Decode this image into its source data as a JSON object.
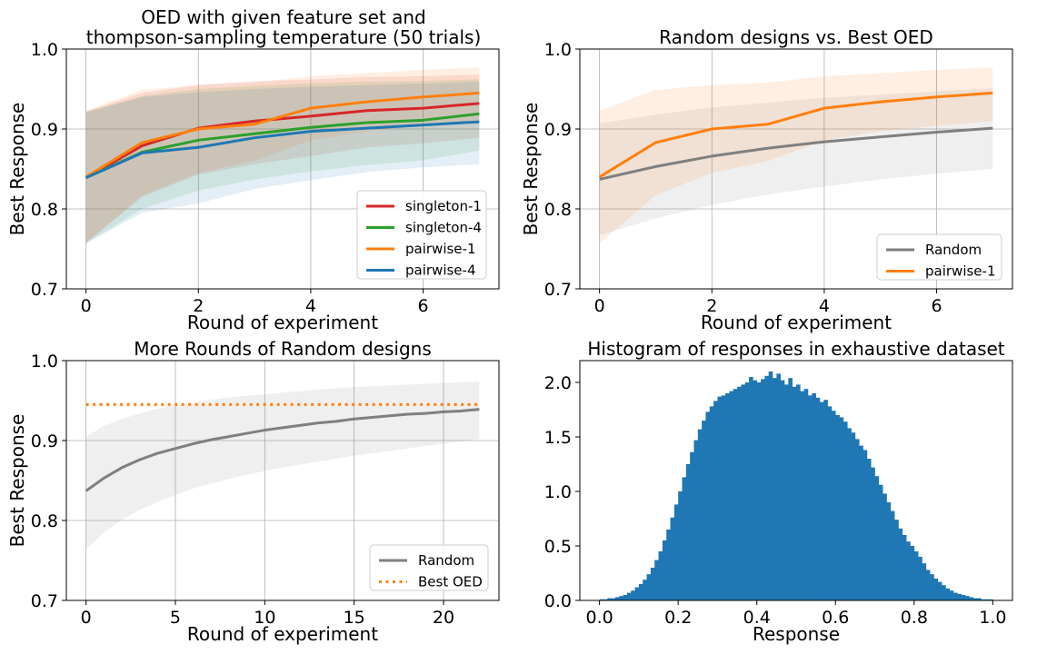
{
  "chart_data": [
    {
      "id": "p1",
      "type": "line",
      "title": [
        "OED with given feature set and",
        "thompson-sampling temperature (50 trials)"
      ],
      "xlabel": "Round of experiment",
      "ylabel": "Best Response",
      "xlim": [
        -0.35,
        7.35
      ],
      "ylim": [
        0.7,
        1.0
      ],
      "xticks": [
        0,
        2,
        4,
        6
      ],
      "yticks": [
        0.7,
        0.8,
        0.9,
        1.0
      ],
      "ytick_labels": [
        "0.7",
        "0.8",
        "0.9",
        "1.0"
      ],
      "grid": true,
      "legend_position": "lower-right",
      "x": [
        0,
        1,
        2,
        3,
        4,
        5,
        6,
        7
      ],
      "series": [
        {
          "name": "singleton-1",
          "color": "#d62728",
          "values": [
            0.839,
            0.879,
            0.901,
            0.91,
            0.916,
            0.923,
            0.926,
            0.932
          ],
          "lower": [
            0.758,
            0.815,
            0.843,
            0.856,
            0.866,
            0.877,
            0.882,
            0.889
          ],
          "upper": [
            0.922,
            0.945,
            0.955,
            0.96,
            0.962,
            0.965,
            0.966,
            0.968
          ]
        },
        {
          "name": "singleton-4",
          "color": "#2ca02c",
          "values": [
            0.839,
            0.871,
            0.886,
            0.894,
            0.902,
            0.908,
            0.911,
            0.919
          ],
          "lower": [
            0.757,
            0.8,
            0.823,
            0.837,
            0.847,
            0.855,
            0.861,
            0.873
          ],
          "upper": [
            0.921,
            0.941,
            0.95,
            0.954,
            0.957,
            0.959,
            0.96,
            0.962
          ]
        },
        {
          "name": "pairwise-1",
          "color": "#ff7f0e",
          "values": [
            0.84,
            0.883,
            0.9,
            0.906,
            0.926,
            0.934,
            0.94,
            0.945
          ],
          "lower": [
            0.757,
            0.817,
            0.845,
            0.86,
            0.886,
            0.897,
            0.904,
            0.91
          ],
          "upper": [
            0.923,
            0.949,
            0.955,
            0.958,
            0.966,
            0.97,
            0.974,
            0.977
          ]
        },
        {
          "name": "pairwise-4",
          "color": "#1f77b4",
          "values": [
            0.839,
            0.87,
            0.877,
            0.889,
            0.897,
            0.901,
            0.905,
            0.909
          ],
          "lower": [
            0.757,
            0.795,
            0.807,
            0.825,
            0.836,
            0.846,
            0.852,
            0.856
          ],
          "upper": [
            0.921,
            0.94,
            0.946,
            0.95,
            0.953,
            0.955,
            0.957,
            0.959
          ]
        }
      ]
    },
    {
      "id": "p2",
      "type": "line",
      "title": [
        "Random designs vs. Best OED"
      ],
      "xlabel": "Round of experiment",
      "ylabel": "Best Response",
      "xlim": [
        -0.35,
        7.35
      ],
      "ylim": [
        0.7,
        1.0
      ],
      "xticks": [
        0,
        2,
        4,
        6
      ],
      "yticks": [
        0.7,
        0.8,
        0.9,
        1.0
      ],
      "ytick_labels": [
        "0.7",
        "0.8",
        "0.9",
        "1.0"
      ],
      "grid": true,
      "legend_position": "lower-right",
      "x": [
        0,
        1,
        2,
        3,
        4,
        5,
        6,
        7
      ],
      "series": [
        {
          "name": "Random",
          "color": "#7f7f7f",
          "values": [
            0.837,
            0.853,
            0.866,
            0.876,
            0.884,
            0.89,
            0.896,
            0.901
          ],
          "lower": [
            0.767,
            0.788,
            0.805,
            0.818,
            0.828,
            0.837,
            0.844,
            0.85
          ],
          "upper": [
            0.907,
            0.918,
            0.927,
            0.933,
            0.939,
            0.943,
            0.947,
            0.951
          ]
        },
        {
          "name": "pairwise-1",
          "color": "#ff7f0e",
          "values": [
            0.84,
            0.883,
            0.9,
            0.906,
            0.926,
            0.934,
            0.94,
            0.945
          ],
          "lower": [
            0.757,
            0.817,
            0.845,
            0.86,
            0.886,
            0.897,
            0.904,
            0.91
          ],
          "upper": [
            0.923,
            0.949,
            0.955,
            0.958,
            0.966,
            0.97,
            0.974,
            0.977
          ]
        }
      ]
    },
    {
      "id": "p3",
      "type": "line",
      "title": [
        "More Rounds of Random designs"
      ],
      "xlabel": "Round of experiment",
      "ylabel": "Best Response",
      "xlim": [
        -1.1,
        23.1
      ],
      "ylim": [
        0.7,
        1.0
      ],
      "xticks": [
        0,
        5,
        10,
        15,
        20
      ],
      "yticks": [
        0.7,
        0.8,
        0.9,
        1.0
      ],
      "ytick_labels": [
        "0.7",
        "0.8",
        "0.9",
        "1.0"
      ],
      "grid": true,
      "legend_position": "lower-right",
      "x": [
        0,
        1,
        2,
        3,
        4,
        5,
        6,
        7,
        8,
        9,
        10,
        11,
        12,
        13,
        14,
        15,
        16,
        17,
        18,
        19,
        20,
        21,
        22
      ],
      "series": [
        {
          "name": "Random",
          "color": "#7f7f7f",
          "values": [
            0.837,
            0.853,
            0.866,
            0.876,
            0.884,
            0.89,
            0.896,
            0.901,
            0.905,
            0.909,
            0.913,
            0.916,
            0.919,
            0.922,
            0.924,
            0.927,
            0.929,
            0.931,
            0.933,
            0.934,
            0.936,
            0.937,
            0.939
          ],
          "lower": [
            0.764,
            0.785,
            0.801,
            0.813,
            0.823,
            0.832,
            0.84,
            0.846,
            0.852,
            0.857,
            0.862,
            0.866,
            0.87,
            0.874,
            0.877,
            0.881,
            0.884,
            0.887,
            0.89,
            0.893,
            0.896,
            0.899,
            0.902
          ],
          "upper": [
            0.905,
            0.918,
            0.927,
            0.934,
            0.94,
            0.944,
            0.948,
            0.951,
            0.954,
            0.956,
            0.958,
            0.96,
            0.962,
            0.964,
            0.965,
            0.967,
            0.968,
            0.969,
            0.97,
            0.971,
            0.972,
            0.973,
            0.974
          ]
        },
        {
          "name": "Best OED",
          "color": "#ff7f0e",
          "style": "dotted",
          "values": [
            0.945,
            0.945,
            0.945,
            0.945,
            0.945,
            0.945,
            0.945,
            0.945,
            0.945,
            0.945,
            0.945,
            0.945,
            0.945,
            0.945,
            0.945,
            0.945,
            0.945,
            0.945,
            0.945,
            0.945,
            0.945,
            0.945,
            0.945
          ]
        }
      ]
    },
    {
      "id": "p4",
      "type": "histogram",
      "title": [
        "Histogram of responses in exhaustive dataset"
      ],
      "xlabel": "Response",
      "ylabel": "",
      "xlim": [
        -0.05,
        1.05
      ],
      "ylim": [
        0.0,
        2.2
      ],
      "xticks": [
        0.0,
        0.2,
        0.4,
        0.6,
        0.8,
        1.0
      ],
      "xtick_labels": [
        "0.0",
        "0.2",
        "0.4",
        "0.6",
        "0.8",
        "1.0"
      ],
      "yticks": [
        0.0,
        0.5,
        1.0,
        1.5,
        2.0
      ],
      "ytick_labels": [
        "0.0",
        "0.5",
        "1.0",
        "1.5",
        "2.0"
      ],
      "grid": false,
      "color": "#1f77b4",
      "bin_start": 0.0,
      "bin_width": 0.01,
      "values": [
        0.01,
        0.01,
        0.02,
        0.02,
        0.03,
        0.04,
        0.05,
        0.07,
        0.09,
        0.12,
        0.15,
        0.19,
        0.24,
        0.3,
        0.37,
        0.45,
        0.55,
        0.65,
        0.76,
        0.88,
        1.0,
        1.13,
        1.25,
        1.36,
        1.47,
        1.57,
        1.65,
        1.73,
        1.78,
        1.83,
        1.87,
        1.88,
        1.9,
        1.92,
        1.94,
        1.96,
        1.98,
        2.0,
        2.05,
        2.02,
        2.0,
        2.03,
        2.06,
        2.1,
        2.04,
        2.08,
        2.02,
        1.98,
        2.04,
        1.96,
        1.98,
        1.92,
        1.94,
        1.88,
        1.9,
        1.86,
        1.82,
        1.84,
        1.78,
        1.74,
        1.7,
        1.68,
        1.64,
        1.58,
        1.54,
        1.48,
        1.42,
        1.38,
        1.3,
        1.22,
        1.14,
        1.06,
        0.98,
        0.9,
        0.82,
        0.74,
        0.66,
        0.6,
        0.54,
        0.5,
        0.45,
        0.4,
        0.34,
        0.28,
        0.24,
        0.2,
        0.17,
        0.14,
        0.11,
        0.09,
        0.07,
        0.06,
        0.05,
        0.04,
        0.03,
        0.02,
        0.02,
        0.01,
        0.01,
        0.01
      ]
    }
  ]
}
